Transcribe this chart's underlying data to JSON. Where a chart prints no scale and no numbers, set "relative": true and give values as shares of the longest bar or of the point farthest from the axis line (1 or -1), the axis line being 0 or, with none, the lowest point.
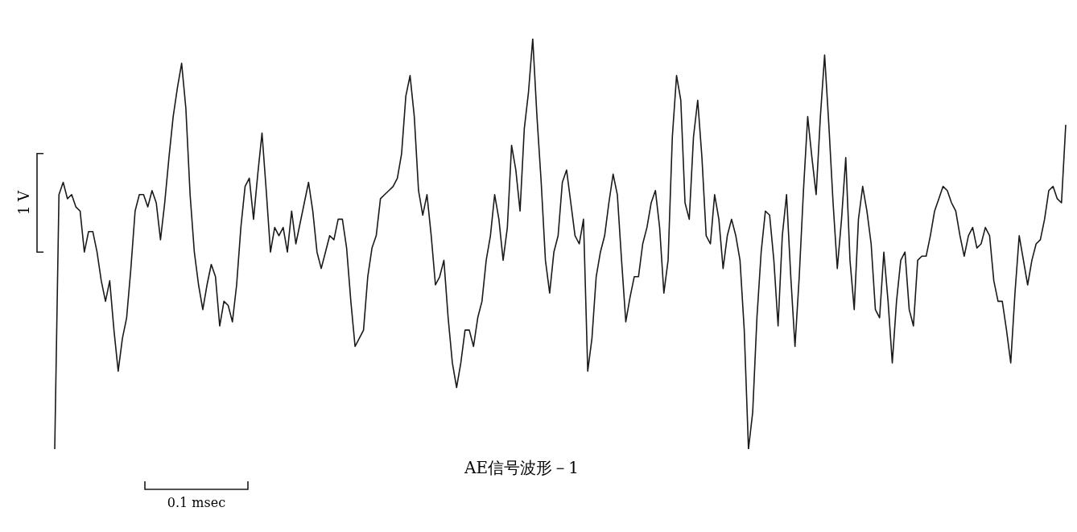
{
  "chart_data": {
    "type": "line",
    "relative": true,
    "title": "AE信号波形－1",
    "annotations": [
      "1 V",
      "0.1 msec"
    ],
    "marker": "none",
    "line_style": "solid",
    "legend": false,
    "categories": [
      null,
      null,
      null,
      null,
      null,
      null,
      null,
      null,
      null,
      null,
      null,
      null,
      null,
      null,
      null,
      null,
      null,
      null,
      null,
      null,
      null,
      null,
      null,
      null,
      null,
      null,
      null,
      null,
      null,
      null,
      null,
      null,
      null,
      null,
      null,
      null,
      null,
      null,
      null,
      null,
      null,
      null,
      null,
      null,
      null,
      null,
      null,
      null,
      null,
      null,
      null,
      null,
      null,
      null,
      null,
      null,
      null,
      null,
      null,
      null,
      null,
      null,
      null,
      null,
      null,
      null,
      null,
      null,
      null,
      null,
      null,
      null,
      null,
      null,
      null,
      null,
      null,
      null,
      null,
      null,
      null,
      null,
      null,
      null,
      null,
      null,
      null,
      null,
      null,
      null,
      null,
      null,
      null,
      null,
      null,
      null,
      null,
      null,
      null,
      null,
      null,
      null,
      null,
      null,
      null,
      null,
      null,
      null,
      null,
      null,
      null,
      null,
      null,
      null,
      null,
      null,
      null,
      null,
      null,
      null,
      null,
      null,
      null,
      null,
      null,
      null,
      null,
      null,
      null,
      null,
      null,
      null,
      null,
      null,
      null,
      null,
      null,
      null,
      null,
      null,
      null,
      null,
      null,
      null,
      null,
      null,
      null,
      null,
      null,
      null,
      null,
      null,
      null,
      null,
      null,
      null,
      null,
      null,
      null,
      null,
      null,
      null,
      null,
      null,
      null,
      null,
      null,
      null,
      null,
      null,
      null,
      null,
      null,
      null,
      null,
      null,
      null,
      null,
      null,
      null,
      null,
      null,
      null,
      null,
      null,
      null,
      null,
      null,
      null,
      null,
      null,
      null,
      null,
      null,
      null,
      null,
      null,
      null,
      null,
      null,
      null,
      null,
      null,
      null,
      null,
      null,
      null,
      null,
      null,
      null,
      null,
      null,
      null,
      null,
      null,
      null,
      null,
      null,
      null,
      null,
      null,
      null,
      null,
      null,
      null,
      null,
      null,
      null,
      null,
      null,
      null,
      null,
      null,
      null,
      null,
      null,
      null,
      null,
      null,
      null
    ],
    "series": [
      {
        "color": "#1a1a1a",
        "values": [
          0,
          0.62,
          0.65,
          0.61,
          0.62,
          0.59,
          0.58,
          0.48,
          0.53,
          0.53,
          0.48,
          0.41,
          0.36,
          0.41,
          0.29,
          0.19,
          0.27,
          0.32,
          0.44,
          0.58,
          0.62,
          0.62,
          0.59,
          0.63,
          0.6,
          0.51,
          0.6,
          0.71,
          0.81,
          0.88,
          0.94,
          0.83,
          0.62,
          0.48,
          0.4,
          0.34,
          0.4,
          0.45,
          0.42,
          0.3,
          0.36,
          0.35,
          0.31,
          0.4,
          0.54,
          0.64,
          0.66,
          0.56,
          0.67,
          0.77,
          0.63,
          0.48,
          0.54,
          0.52,
          0.54,
          0.48,
          0.58,
          0.5,
          0.55,
          0.6,
          0.65,
          0.58,
          0.48,
          0.44,
          0.48,
          0.52,
          0.51,
          0.56,
          0.56,
          0.49,
          0.36,
          0.25,
          0.27,
          0.29,
          0.42,
          0.49,
          0.52,
          0.61,
          0.62,
          0.63,
          0.64,
          0.66,
          0.72,
          0.86,
          0.91,
          0.81,
          0.63,
          0.57,
          0.62,
          0.52,
          0.4,
          0.42,
          0.46,
          0.32,
          0.21,
          0.15,
          0.21,
          0.29,
          0.29,
          0.25,
          0.32,
          0.36,
          0.46,
          0.52,
          0.62,
          0.56,
          0.46,
          0.54,
          0.74,
          0.68,
          0.58,
          0.78,
          0.87,
          1,
          0.81,
          0.65,
          0.46,
          0.38,
          0.48,
          0.52,
          0.65,
          0.68,
          0.6,
          0.52,
          0.5,
          0.56,
          0.19,
          0.27,
          0.42,
          0.48,
          0.52,
          0.6,
          0.67,
          0.62,
          0.46,
          0.31,
          0.37,
          0.42,
          0.42,
          0.5,
          0.54,
          0.6,
          0.63,
          0.54,
          0.38,
          0.46,
          0.76,
          0.91,
          0.85,
          0.6,
          0.56,
          0.76,
          0.85,
          0.71,
          0.52,
          0.5,
          0.62,
          0.56,
          0.44,
          0.52,
          0.56,
          0.52,
          0.46,
          0.29,
          0,
          0.09,
          0.32,
          0.48,
          0.58,
          0.57,
          0.46,
          0.3,
          0.52,
          0.62,
          0.42,
          0.25,
          0.42,
          0.63,
          0.81,
          0.71,
          0.62,
          0.81,
          0.96,
          0.79,
          0.6,
          0.44,
          0.56,
          0.71,
          0.46,
          0.34,
          0.56,
          0.64,
          0.58,
          0.5,
          0.34,
          0.32,
          0.48,
          0.36,
          0.21,
          0.36,
          0.46,
          0.48,
          0.34,
          0.3,
          0.46,
          0.47,
          0.47,
          0.52,
          0.58,
          0.61,
          0.64,
          0.63,
          0.6,
          0.58,
          0.52,
          0.47,
          0.52,
          0.54,
          0.49,
          0.5,
          0.54,
          0.52,
          0.41,
          0.36,
          0.36,
          0.29,
          0.21,
          0.38,
          0.52,
          0.46,
          0.4,
          0.46,
          0.5,
          0.51,
          0.56,
          0.63,
          0.64,
          0.61,
          0.6,
          0.79
        ]
      }
    ]
  }
}
